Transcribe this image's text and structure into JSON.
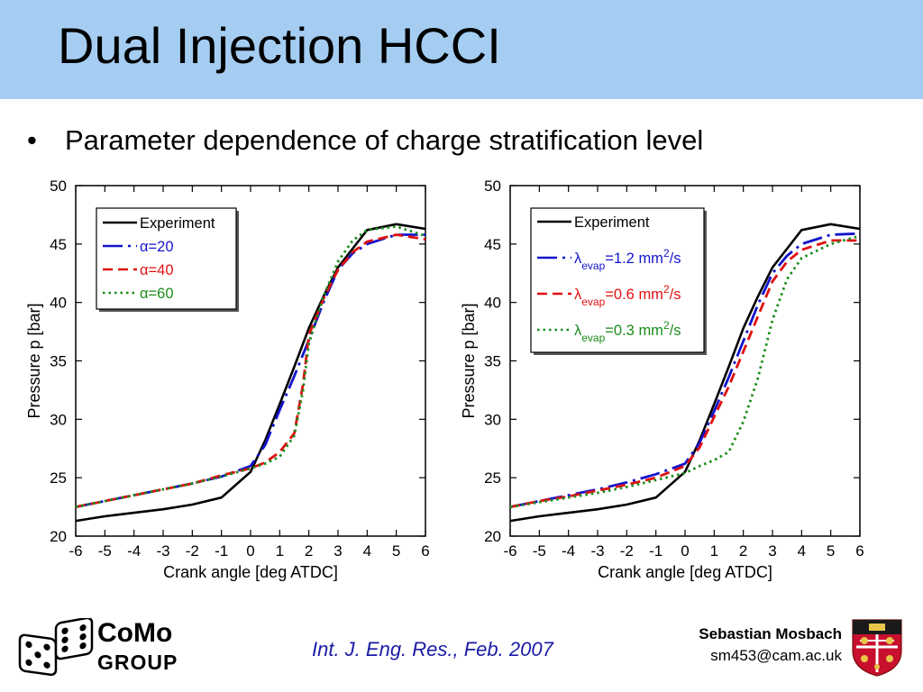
{
  "slide": {
    "title": "Dual Injection HCCI",
    "bullet": "Parameter dependence of charge stratification level"
  },
  "footer": {
    "logo_name": "CoMo",
    "logo_group": "GROUP",
    "citation": "Int. J. Eng. Res., Feb. 2007",
    "author": "Sebastian Mosbach",
    "email": "sm453@cam.ac.uk"
  },
  "icons": {
    "logo": "dice-icon",
    "crest": "cambridge-crest-icon"
  },
  "chart_data": [
    {
      "type": "line",
      "xlabel": "Crank angle [deg ATDC]",
      "ylabel": "Pressure p [bar]",
      "xlim": [
        -6,
        6
      ],
      "ylim": [
        20,
        50
      ],
      "xticks": [
        -6,
        -5,
        -4,
        -3,
        -2,
        -1,
        0,
        1,
        2,
        3,
        4,
        5,
        6
      ],
      "yticks": [
        20,
        25,
        30,
        35,
        40,
        45,
        50
      ],
      "grid": false,
      "legend_position": "top-left",
      "series": [
        {
          "name": "Experiment",
          "color": "#000000",
          "dash": "solid",
          "x": [
            -6,
            -5,
            -4,
            -3,
            -2,
            -1,
            0,
            0.5,
            1,
            1.5,
            2,
            2.5,
            3,
            3.5,
            4,
            5,
            6
          ],
          "y": [
            21.3,
            21.7,
            22.0,
            22.3,
            22.7,
            23.3,
            25.5,
            28.2,
            31.3,
            34.5,
            37.8,
            40.5,
            43.0,
            44.6,
            46.2,
            46.7,
            46.3
          ]
        },
        {
          "name": "α=20",
          "color": "#1414cc",
          "dash": "dashdot",
          "x": [
            -6,
            -5,
            -4,
            -3,
            -2,
            -1,
            0,
            0.5,
            1,
            1.5,
            2,
            2.5,
            3,
            3.5,
            4,
            5,
            6
          ],
          "y": [
            22.5,
            23.0,
            23.5,
            24.0,
            24.5,
            25.1,
            26.0,
            27.8,
            30.8,
            33.7,
            36.8,
            40.0,
            42.8,
            44.2,
            45.0,
            45.8,
            45.8
          ]
        },
        {
          "name": "α=40",
          "color": "#e01010",
          "dash": "dash",
          "x": [
            -6,
            -5,
            -4,
            -3,
            -2,
            -1,
            0,
            0.5,
            1,
            1.5,
            1.8,
            2,
            2.5,
            3,
            3.5,
            4,
            5,
            6
          ],
          "y": [
            22.5,
            23.0,
            23.5,
            24.0,
            24.5,
            25.2,
            25.8,
            26.3,
            27.2,
            28.8,
            33.0,
            37.2,
            40.3,
            42.8,
            44.3,
            45.2,
            45.8,
            45.4
          ]
        },
        {
          "name": "α=60",
          "color": "#1a8c1a",
          "dash": "dot",
          "x": [
            -6,
            -5,
            -4,
            -3,
            -2,
            -1,
            0,
            0.5,
            1,
            1.5,
            1.8,
            2,
            2.5,
            3,
            3.5,
            4,
            5,
            6
          ],
          "y": [
            22.5,
            23.0,
            23.5,
            24.0,
            24.5,
            25.1,
            25.8,
            26.2,
            26.8,
            28.6,
            32.5,
            36.5,
            40.5,
            43.5,
            45.3,
            46.2,
            46.5,
            45.7
          ]
        }
      ]
    },
    {
      "type": "line",
      "xlabel": "Crank angle [deg ATDC]",
      "ylabel": "Pressure p [bar]",
      "xlim": [
        -6,
        6
      ],
      "ylim": [
        20,
        50
      ],
      "xticks": [
        -6,
        -5,
        -4,
        -3,
        -2,
        -1,
        0,
        1,
        2,
        3,
        4,
        5,
        6
      ],
      "yticks": [
        20,
        25,
        30,
        35,
        40,
        45,
        50
      ],
      "grid": false,
      "legend_position": "top-left",
      "series": [
        {
          "name": "Experiment",
          "color": "#000000",
          "dash": "solid",
          "x": [
            -6,
            -5,
            -4,
            -3,
            -2,
            -1,
            0,
            0.5,
            1,
            1.5,
            2,
            2.5,
            3,
            3.5,
            4,
            5,
            6
          ],
          "y": [
            21.3,
            21.7,
            22.0,
            22.3,
            22.7,
            23.3,
            25.5,
            28.2,
            31.3,
            34.5,
            37.8,
            40.5,
            43.0,
            44.6,
            46.2,
            46.7,
            46.3
          ]
        },
        {
          "name": "λevap=1.2 mm2/s",
          "label_parts": [
            "λ",
            "evap",
            "=1.2 mm",
            "2",
            "/s"
          ],
          "color": "#1414cc",
          "dash": "dashdot",
          "x": [
            -6,
            -5,
            -4,
            -3,
            -2,
            -1,
            0,
            0.5,
            1,
            1.5,
            2,
            2.5,
            3,
            3.5,
            4,
            5,
            6
          ],
          "y": [
            22.5,
            23.0,
            23.5,
            24.0,
            24.6,
            25.3,
            26.2,
            28.0,
            30.7,
            33.6,
            36.7,
            39.8,
            42.5,
            44.0,
            45.0,
            45.8,
            45.9
          ]
        },
        {
          "name": "λevap=0.6 mm2/s",
          "label_parts": [
            "λ",
            "evap",
            "=0.6 mm",
            "2",
            "/s"
          ],
          "color": "#e01010",
          "dash": "dash",
          "x": [
            -6,
            -5,
            -4,
            -3,
            -2,
            -1,
            0,
            0.5,
            1,
            1.5,
            2,
            2.5,
            3,
            3.5,
            4,
            5,
            6
          ],
          "y": [
            22.5,
            23.0,
            23.4,
            23.9,
            24.4,
            25.0,
            26.0,
            27.6,
            30.2,
            32.8,
            35.8,
            38.8,
            41.8,
            43.5,
            44.5,
            45.3,
            45.3
          ]
        },
        {
          "name": "λevap=0.3 mm2/s",
          "label_parts": [
            "λ",
            "evap",
            "=0.3 mm",
            "2",
            "/s"
          ],
          "color": "#1a8c1a",
          "dash": "dot",
          "x": [
            -6,
            -5,
            -4,
            -3,
            -2,
            -1,
            0,
            0.5,
            1,
            1.5,
            2,
            2.5,
            3,
            3.5,
            4,
            5,
            6
          ],
          "y": [
            22.5,
            22.9,
            23.3,
            23.7,
            24.2,
            24.8,
            25.4,
            26.0,
            26.5,
            27.2,
            29.8,
            33.5,
            38.5,
            42.0,
            43.8,
            45.0,
            45.7
          ]
        }
      ]
    }
  ]
}
